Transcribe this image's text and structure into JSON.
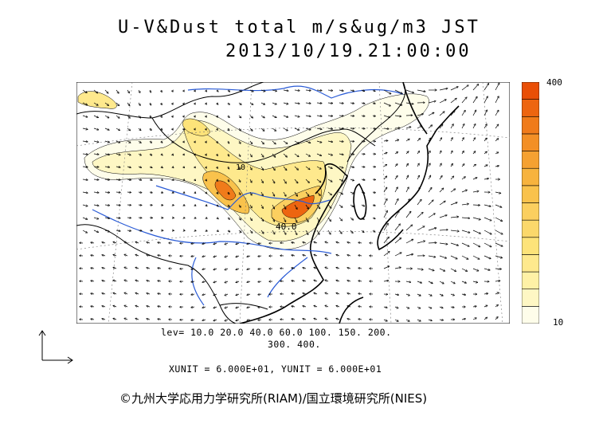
{
  "title": {
    "line1": "U-V&Dust total m/s&ug/m3 JST",
    "line2": "2013/10/19.21:00:00"
  },
  "colorbar": {
    "max_label": "400",
    "min_label": "10",
    "colors": [
      "#fefdea",
      "#fef7c4",
      "#fef1a6",
      "#fee98d",
      "#fde379",
      "#fbd86b",
      "#fbcf5f",
      "#f9c24c",
      "#f7b33e",
      "#f5a131",
      "#f38f25",
      "#f07b1a",
      "#ed6510",
      "#e94f07"
    ]
  },
  "contour_levels": {
    "line1": "lev= 10.0 20.0 40.0 60.0 100. 150. 200.",
    "line2": "300. 400."
  },
  "units_text": "XUNIT = 6.000E+01, YUNIT = 6.000E+01",
  "contour_labels": [
    "40.0",
    "10"
  ],
  "credit": "©九州大学応用力学研究所(RIAM)/国立環境研究所(NIES)"
}
